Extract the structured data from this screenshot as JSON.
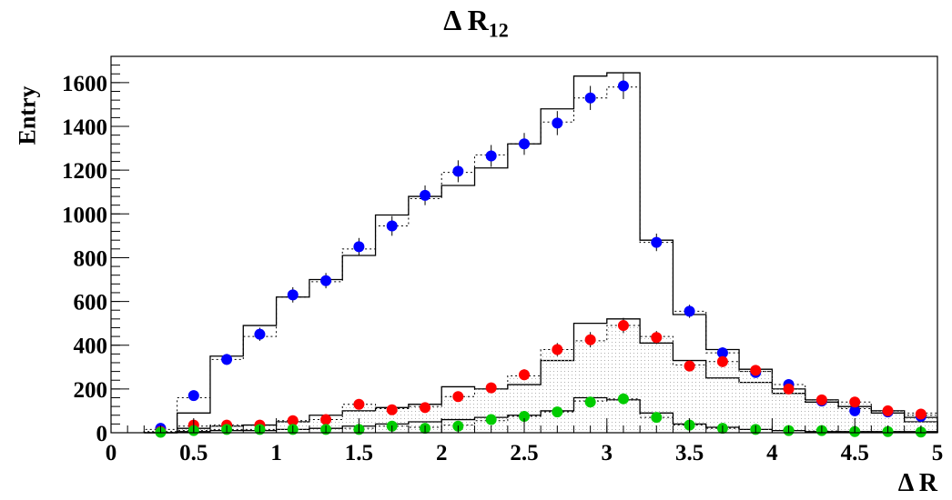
{
  "title_main": "Δ R",
  "title_sub": "12",
  "xlabel": "Δ R",
  "ylabel": "Entry",
  "chart_data": {
    "type": "histogram",
    "title": "Δ R12",
    "xlabel": "Δ R",
    "ylabel": "Entry",
    "xlim": [
      0,
      5
    ],
    "ylim": [
      0,
      1720
    ],
    "x_ticks": [
      0,
      0.5,
      1,
      1.5,
      2,
      2.5,
      3,
      3.5,
      4,
      4.5,
      5
    ],
    "y_ticks": [
      0,
      200,
      400,
      600,
      800,
      1000,
      1200,
      1400,
      1600
    ],
    "bin_edges": [
      0.2,
      0.4,
      0.6,
      0.8,
      1.0,
      1.2,
      1.4,
      1.6,
      1.8,
      2.0,
      2.2,
      2.4,
      2.6,
      2.8,
      3.0,
      3.2,
      3.4,
      3.6,
      3.8,
      4.0,
      4.2,
      4.4,
      4.6,
      4.8,
      5.0
    ],
    "histograms": [
      {
        "style": "solid",
        "fill": false,
        "values": [
          0,
          90,
          350,
          490,
          620,
          700,
          810,
          995,
          1080,
          1130,
          1210,
          1320,
          1480,
          1630,
          1645,
          880,
          540,
          380,
          290,
          200,
          150,
          120,
          90,
          50
        ]
      },
      {
        "style": "dotted",
        "fill": false,
        "values": [
          15,
          160,
          335,
          440,
          620,
          690,
          840,
          945,
          1070,
          1190,
          1270,
          1320,
          1420,
          1530,
          1580,
          870,
          555,
          365,
          280,
          220,
          150,
          110,
          100,
          80
        ]
      },
      {
        "style": "solid",
        "fill": false,
        "values": [
          0,
          20,
          30,
          35,
          50,
          80,
          100,
          115,
          130,
          210,
          200,
          220,
          330,
          500,
          520,
          410,
          330,
          250,
          230,
          180,
          140,
          120,
          100,
          70
        ]
      },
      {
        "style": "dotted",
        "fill": true,
        "values": [
          5,
          30,
          35,
          35,
          55,
          60,
          130,
          110,
          120,
          165,
          200,
          260,
          380,
          420,
          490,
          440,
          310,
          325,
          280,
          200,
          150,
          140,
          100,
          90
        ]
      },
      {
        "style": "solid",
        "fill": false,
        "values": [
          0,
          5,
          10,
          10,
          15,
          20,
          30,
          40,
          50,
          60,
          70,
          80,
          100,
          160,
          150,
          90,
          40,
          25,
          15,
          10,
          5,
          5,
          5,
          5
        ]
      },
      {
        "style": "dotted",
        "fill": true,
        "values": [
          2,
          10,
          15,
          15,
          15,
          20,
          20,
          30,
          25,
          35,
          55,
          75,
          95,
          145,
          155,
          70,
          35,
          20,
          15,
          10,
          8,
          5,
          5,
          3
        ]
      }
    ],
    "series": [
      {
        "color": "#0000ff",
        "x": [
          0.3,
          0.5,
          0.7,
          0.9,
          1.1,
          1.3,
          1.5,
          1.7,
          1.9,
          2.1,
          2.3,
          2.5,
          2.7,
          2.9,
          3.1,
          3.3,
          3.5,
          3.7,
          3.9,
          4.1,
          4.3,
          4.5,
          4.7,
          4.9
        ],
        "y": [
          20,
          170,
          335,
          450,
          630,
          695,
          850,
          945,
          1085,
          1195,
          1265,
          1320,
          1415,
          1530,
          1585,
          870,
          555,
          365,
          275,
          220,
          145,
          100,
          95,
          75
        ],
        "err": [
          10,
          15,
          25,
          30,
          35,
          35,
          40,
          45,
          45,
          50,
          50,
          50,
          55,
          55,
          60,
          40,
          30,
          25,
          20,
          20,
          15,
          12,
          12,
          10
        ]
      },
      {
        "color": "#ff0000",
        "x": [
          0.3,
          0.5,
          0.7,
          0.9,
          1.1,
          1.3,
          1.5,
          1.7,
          1.9,
          2.1,
          2.3,
          2.5,
          2.7,
          2.9,
          3.1,
          3.3,
          3.5,
          3.7,
          3.9,
          4.1,
          4.3,
          4.5,
          4.7,
          4.9
        ],
        "y": [
          5,
          35,
          35,
          35,
          55,
          60,
          130,
          105,
          115,
          165,
          205,
          265,
          380,
          425,
          490,
          435,
          305,
          325,
          285,
          200,
          150,
          140,
          100,
          85
        ],
        "err": [
          5,
          10,
          10,
          10,
          12,
          12,
          18,
          15,
          16,
          20,
          22,
          25,
          30,
          35,
          35,
          30,
          25,
          25,
          22,
          20,
          18,
          16,
          14,
          12
        ]
      },
      {
        "color": "#00cc00",
        "x": [
          0.3,
          0.5,
          0.7,
          0.9,
          1.1,
          1.3,
          1.5,
          1.7,
          1.9,
          2.1,
          2.3,
          2.5,
          2.7,
          2.9,
          3.1,
          3.3,
          3.5,
          3.7,
          3.9,
          4.1,
          4.3,
          4.5,
          4.7,
          4.9
        ],
        "y": [
          2,
          10,
          15,
          15,
          15,
          15,
          15,
          30,
          20,
          30,
          60,
          75,
          95,
          140,
          155,
          70,
          35,
          20,
          15,
          10,
          10,
          5,
          5,
          3
        ],
        "err": [
          2,
          4,
          5,
          5,
          5,
          5,
          5,
          8,
          6,
          8,
          10,
          12,
          14,
          18,
          18,
          12,
          8,
          6,
          5,
          4,
          4,
          3,
          3,
          2
        ]
      }
    ]
  }
}
